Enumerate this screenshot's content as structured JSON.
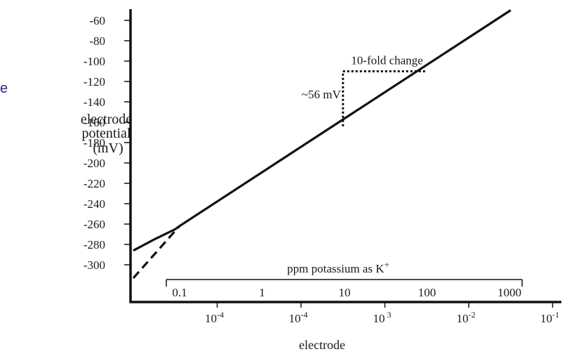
{
  "edge_fragment": "e",
  "chart_data": {
    "type": "line",
    "ylabel_lines": [
      "electrode",
      "potential",
      "(mV)"
    ],
    "xlabel": "electrode",
    "ylim": [
      -320,
      -50
    ],
    "y_ticks": [
      -60,
      -80,
      -100,
      -120,
      -140,
      -160,
      -180,
      -200,
      -220,
      -240,
      -260,
      -280,
      -300
    ],
    "x_ticks": [
      {
        "base": "10",
        "exp": "-4"
      },
      {
        "base": "10",
        "exp": "-4"
      },
      {
        "base": "10",
        "exp": " 3"
      },
      {
        "base": "10",
        "exp": "-2"
      },
      {
        "base": "10",
        "exp": "-1"
      }
    ],
    "secondary_axis": {
      "label": "ppm potassium as K",
      "label_sup": "+",
      "ticks": [
        "0.1",
        "1",
        "10",
        "100",
        "1000"
      ]
    },
    "series": [
      {
        "style": "solid",
        "points": [
          [
            0.0,
            -286
          ],
          [
            0.25,
            -275
          ],
          [
            0.5,
            -265
          ],
          [
            0.55,
            -262
          ],
          [
            4.5,
            -50
          ]
        ]
      },
      {
        "style": "dashed",
        "points": [
          [
            0.0,
            -313
          ],
          [
            0.55,
            -262
          ]
        ]
      }
    ],
    "annotations": {
      "fold_label": "10-fold change",
      "mv_label": "~56 mV",
      "x_start": 2.5,
      "x_end": 3.5,
      "y_low": -164,
      "y_high": -110
    }
  }
}
